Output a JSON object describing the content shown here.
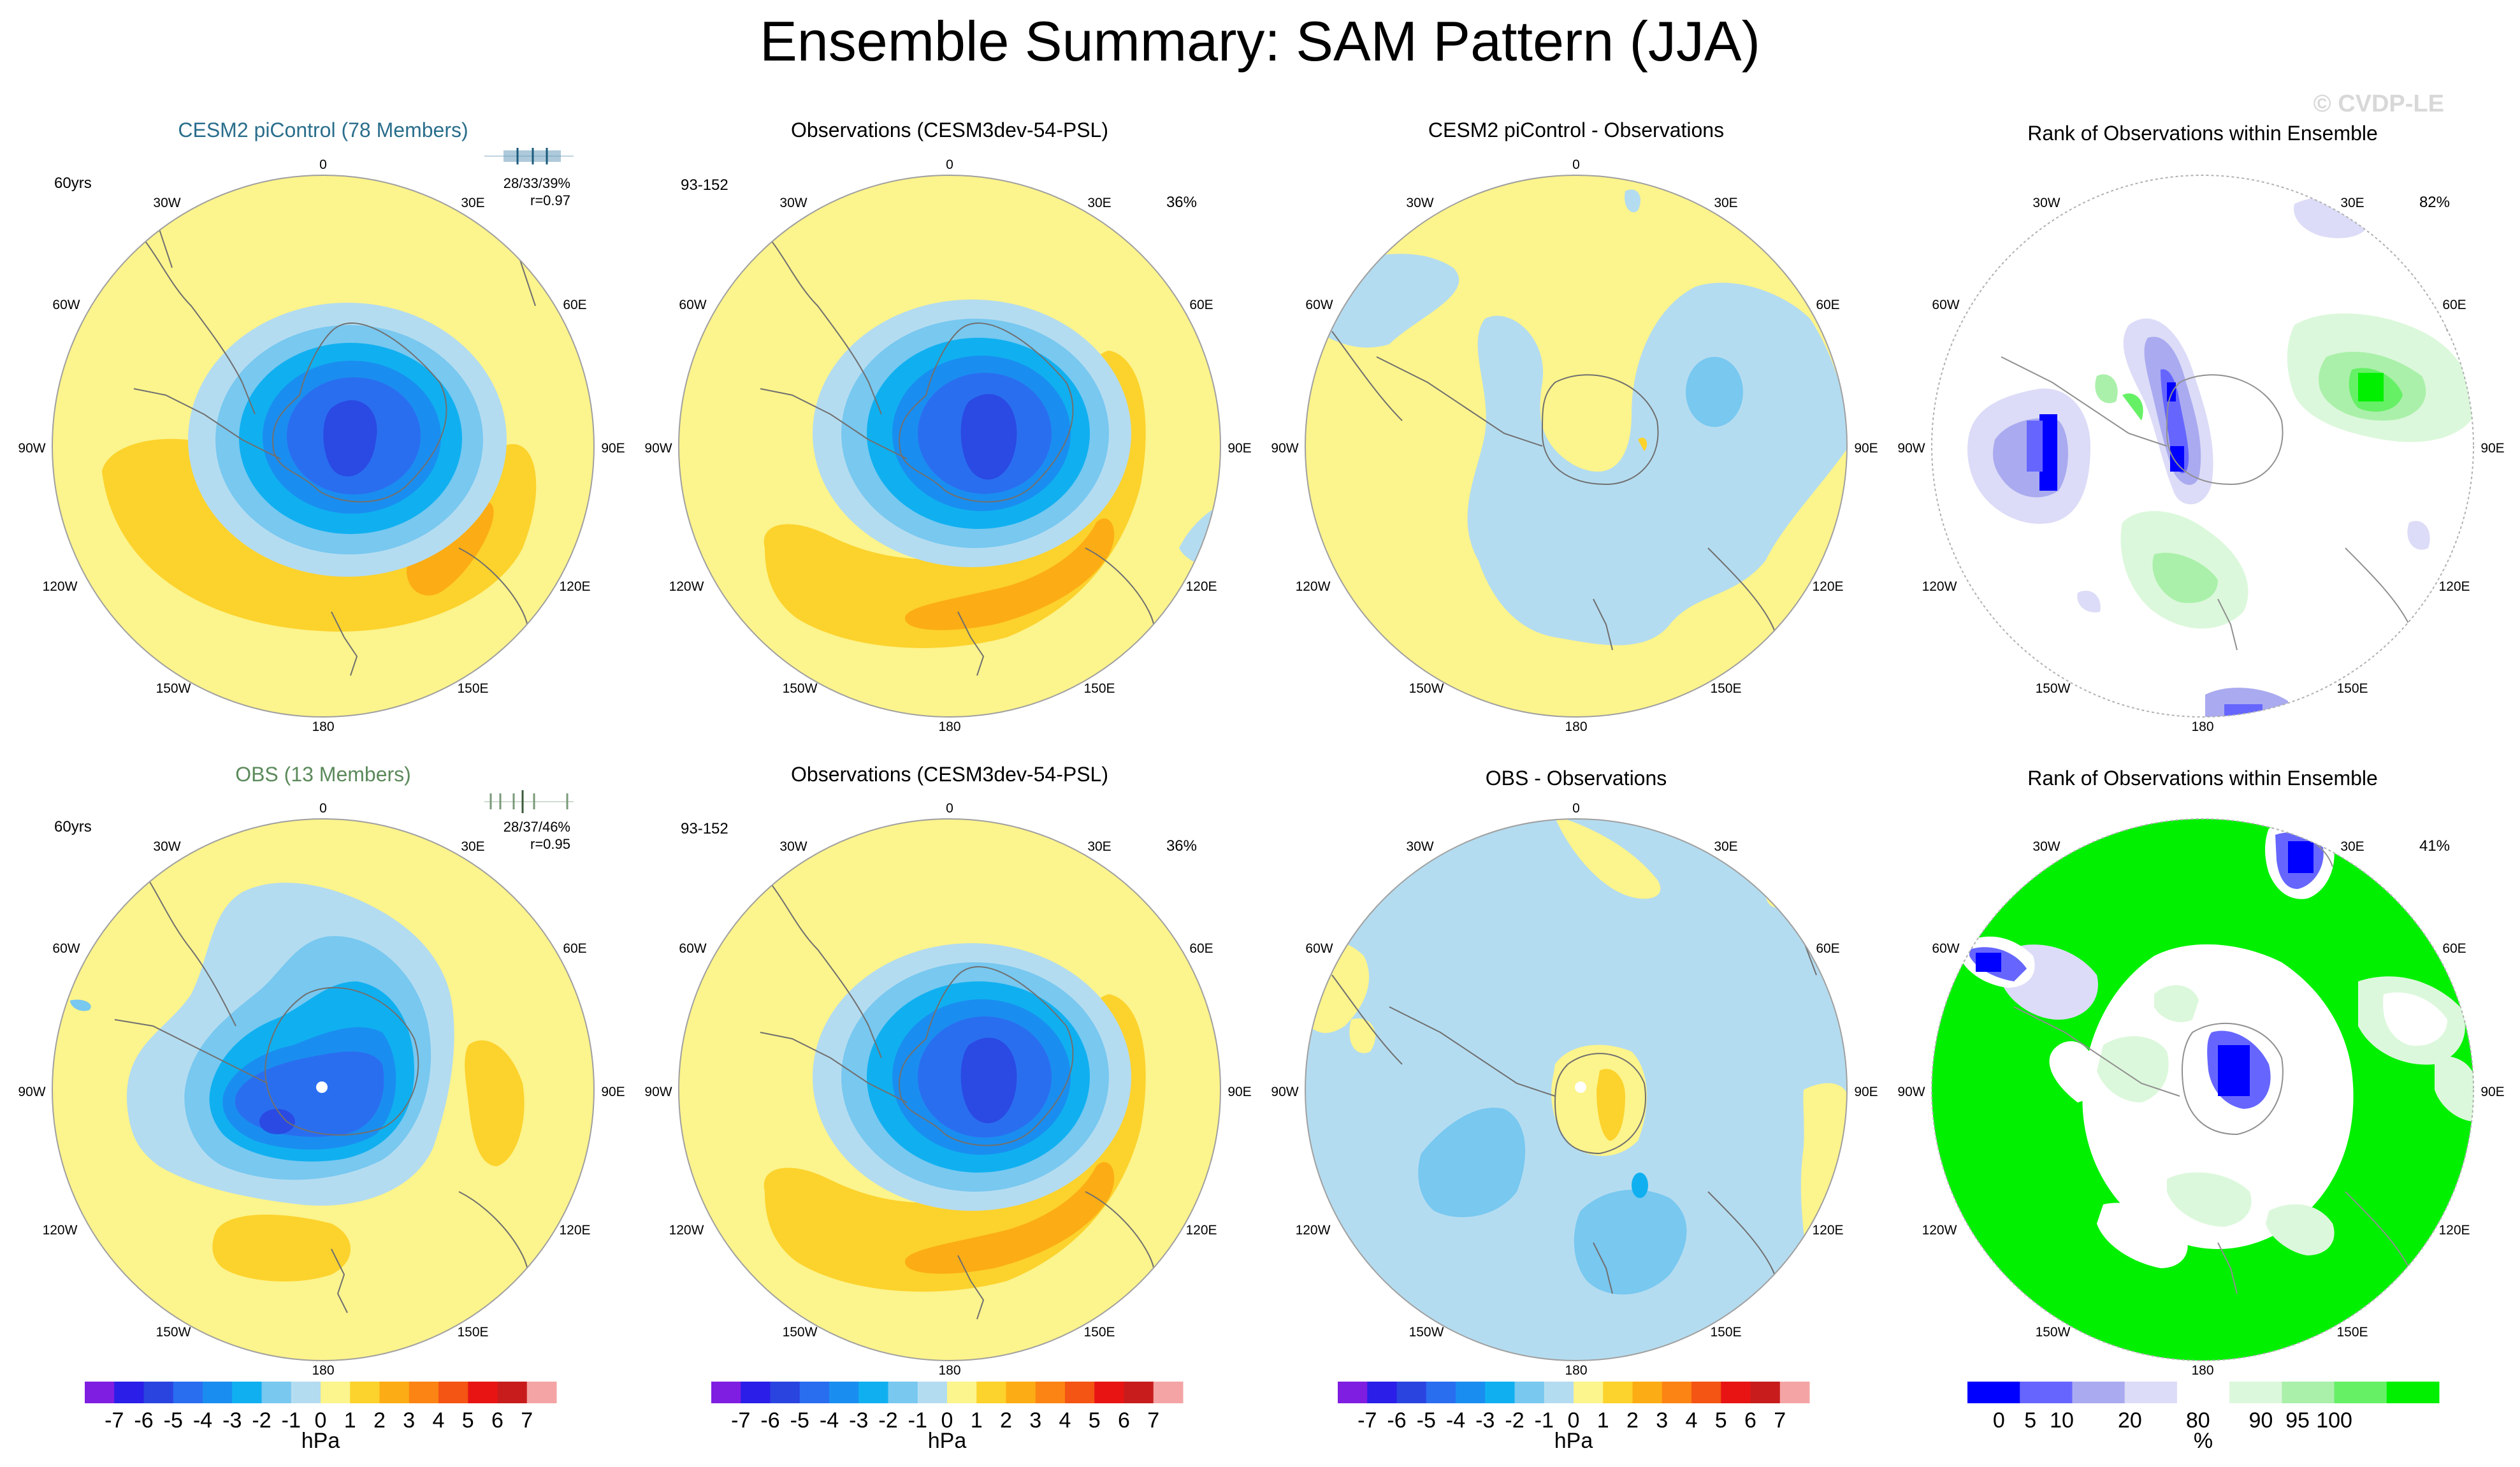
{
  "title": "Ensemble Summary: SAM Pattern (JJA)",
  "watermark": "© CVDP-LE",
  "units": "hPa",
  "lon_labels": [
    "0",
    "30E",
    "60E",
    "90E",
    "120E",
    "150E",
    "180",
    "150W",
    "120W",
    "90W",
    "60W",
    "30W"
  ],
  "colors": {
    "top_title_1": "#2a6e8c",
    "top_title_2": "#5b8a5b",
    "land_line": "#707070"
  },
  "chart_data": [
    {
      "type": "polar-contour-map",
      "panel": "cesm2-picontrol",
      "title": "CESM2 piControl (78 Members)",
      "left_label": "60yrs",
      "stat_label": "28/33/39%",
      "corr_label": "r=0.97",
      "pattern": {
        "low": {
          "lon": 150,
          "lat": -80,
          "depth": -5
        },
        "high_band": [
          {
            "lon": 80,
            "depth": 3
          },
          {
            "lon": -110,
            "depth": 2
          }
        ],
        "pole_dot": false
      }
    },
    {
      "type": "polar-contour-map",
      "panel": "observations-1",
      "title": "Observations (CESM3dev-54-PSL)",
      "left_label": "93-152",
      "right_label": "36%",
      "pattern": {
        "low": {
          "lon": 150,
          "lat": -80,
          "depth": -5
        },
        "high_band": [
          {
            "lon": 100,
            "depth": 3
          },
          {
            "lon": -150,
            "depth": 3
          }
        ],
        "pole_dot": false
      }
    },
    {
      "type": "polar-contour-map",
      "panel": "difference-1",
      "title": "CESM2 piControl - Observations",
      "pattern": {
        "mostly": -1,
        "range": [
          -1,
          1
        ]
      }
    },
    {
      "type": "rank-map",
      "panel": "rank-1",
      "title": "Rank of Observations within Ensemble",
      "right_label": "82%",
      "range_pct": [
        0,
        100
      ]
    },
    {
      "type": "polar-contour-map",
      "panel": "obs-13-members",
      "title": "OBS (13 Members)",
      "left_label": "60yrs",
      "stat_label": "28/37/46%",
      "corr_label": "r=0.95",
      "pattern": {
        "low": {
          "lon": 170,
          "lat": -75,
          "depth": -5
        },
        "high_band": [
          {
            "lon": 80,
            "depth": 2
          },
          {
            "lon": -170,
            "depth": 2
          }
        ],
        "pole_dot": true
      }
    },
    {
      "type": "polar-contour-map",
      "panel": "observations-2",
      "title": "Observations (CESM3dev-54-PSL)",
      "left_label": "93-152",
      "right_label": "36%",
      "pattern": {
        "low": {
          "lon": 150,
          "lat": -80,
          "depth": -5
        },
        "high_band": [
          {
            "lon": 100,
            "depth": 3
          },
          {
            "lon": -150,
            "depth": 3
          }
        ],
        "pole_dot": false
      }
    },
    {
      "type": "polar-contour-map",
      "panel": "difference-2",
      "title": "OBS - Observations",
      "pattern": {
        "mostly": -1,
        "range": [
          -2,
          1
        ],
        "pole_dot": true
      }
    },
    {
      "type": "rank-map",
      "panel": "rank-2",
      "title": "Rank of Observations within Ensemble",
      "right_label": "41%",
      "range_pct": [
        0,
        100
      ]
    }
  ],
  "colorbar_psl": {
    "labels": [
      "-7",
      "-6",
      "-5",
      "-4",
      "-3",
      "-2",
      "-1",
      "0",
      "1",
      "2",
      "3",
      "4",
      "5",
      "6",
      "7"
    ],
    "colors": [
      "#7f1ee0",
      "#2a1ee8",
      "#2a44e0",
      "#2a6ef0",
      "#1a8ef0",
      "#10b0f0",
      "#78c8f0",
      "#b4dcf0",
      "#fcf48c",
      "#fcd22c",
      "#fcac14",
      "#fc8414",
      "#f45414",
      "#e81414",
      "#c81c1c",
      "#f4a4a4"
    ],
    "unit_label": "hPa"
  },
  "colorbar_rank": {
    "labels": [
      "0",
      "5",
      "10",
      "20",
      "80",
      "90",
      "95",
      "100"
    ],
    "colors": [
      "#0000ff",
      "#6666ff",
      "#aaaaf0",
      "#dcdcf8",
      "#ffffff",
      "#dcf8dc",
      "#aaf0aa",
      "#66f066",
      "#00f000"
    ],
    "unit_label": "%"
  }
}
